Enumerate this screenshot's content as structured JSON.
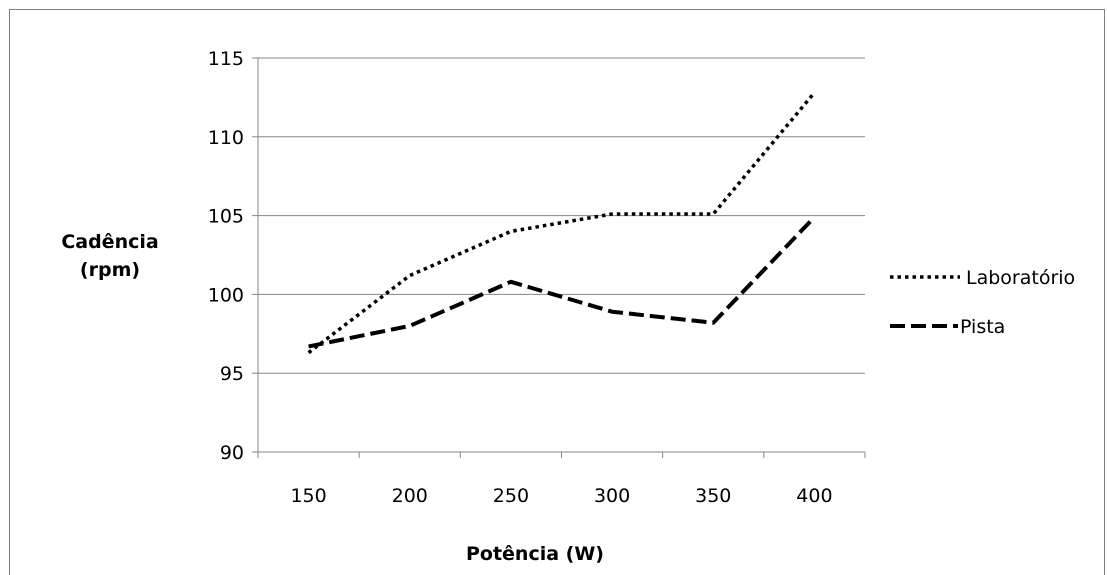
{
  "chart_data": {
    "type": "line",
    "title": "",
    "xlabel": "Potência (W)",
    "ylabel_lines": [
      "Cadência",
      "(rpm)"
    ],
    "categories": [
      "150",
      "200",
      "250",
      "300",
      "350",
      "400"
    ],
    "ylim": [
      90,
      115
    ],
    "yticks": [
      90,
      95,
      100,
      105,
      110,
      115
    ],
    "grid": true,
    "legend_position": "right",
    "series": [
      {
        "name": "Laboratório",
        "values": [
          96.3,
          101.2,
          104.0,
          105.1,
          105.1,
          112.8
        ],
        "color": "#000000",
        "style": "dotted"
      },
      {
        "name": "Pista",
        "values": [
          96.7,
          98.0,
          100.8,
          98.9,
          98.2,
          104.9
        ],
        "color": "#000000",
        "style": "dashed"
      }
    ]
  }
}
